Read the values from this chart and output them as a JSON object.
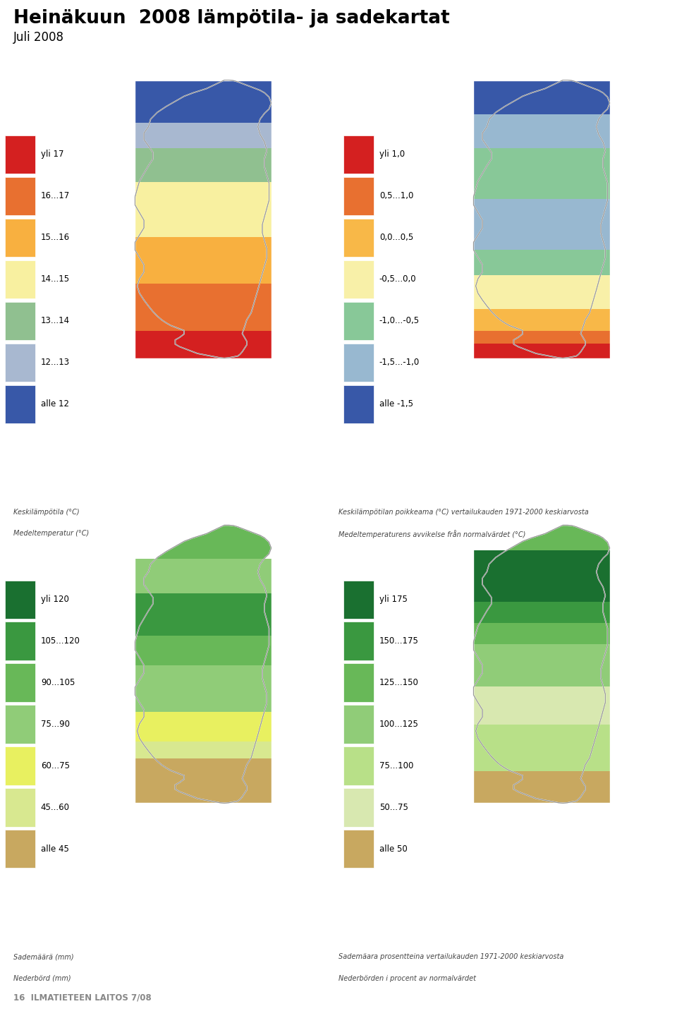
{
  "title": "Heinäkuun  2008 lämpötila- ja sadekartat",
  "subtitle": "Juli 2008",
  "footer": "16  ILMATIETEEN LAITOS 7/08",
  "map1_label1": "Keskilämpötila (°C)",
  "map1_label2": "Medeltemperatur (°C)",
  "map2_label1": "Keskilämpötilan poikkeama (°C) vertailukauden 1971-2000 keskiarvosta",
  "map2_label2": "Medeltemperaturens avvikelse från normalvärdet (°C)",
  "map3_label1": "Sademäärä (mm)",
  "map3_label2": "Nederbörd (mm)",
  "map4_label1": "Sademäara prosentteina vertailukauden 1971-2000 keskiarvosta",
  "map4_label2": "Nederbörden i procent av normalvärdet",
  "legend1_colors": [
    "#d42020",
    "#e87030",
    "#f8b040",
    "#f8f0a0",
    "#90c090",
    "#a8b8d0",
    "#3858a8"
  ],
  "legend1_labels": [
    "yli 17",
    "16...17",
    "15...16",
    "14...15",
    "13...14",
    "12...13",
    "alle 12"
  ],
  "legend2_colors": [
    "#d42020",
    "#e87030",
    "#f8b848",
    "#f8f0a8",
    "#88c898",
    "#98b8d0",
    "#3858a8"
  ],
  "legend2_labels": [
    "yli 1,0",
    "0,5...1,0",
    "0,0...0,5",
    "-0,5...0,0",
    "-1,0...-0,5",
    "-1,5...-1,0",
    "alle -1,5"
  ],
  "legend3_colors": [
    "#1a7030",
    "#3a9840",
    "#68b858",
    "#90cc78",
    "#e8f060",
    "#d8e890",
    "#c8a860"
  ],
  "legend3_labels": [
    "yli 120",
    "105...120",
    "90...105",
    "75...90",
    "60...75",
    "45...60",
    "alle 45"
  ],
  "legend4_colors": [
    "#1a7030",
    "#3a9840",
    "#68b858",
    "#90cc78",
    "#b8e088",
    "#d8e8b0",
    "#c8a860"
  ],
  "legend4_labels": [
    "yli 175",
    "150...175",
    "125...150",
    "100...125",
    "75...100",
    "50...75",
    "alle 50"
  ],
  "bg_color": "#ffffff"
}
